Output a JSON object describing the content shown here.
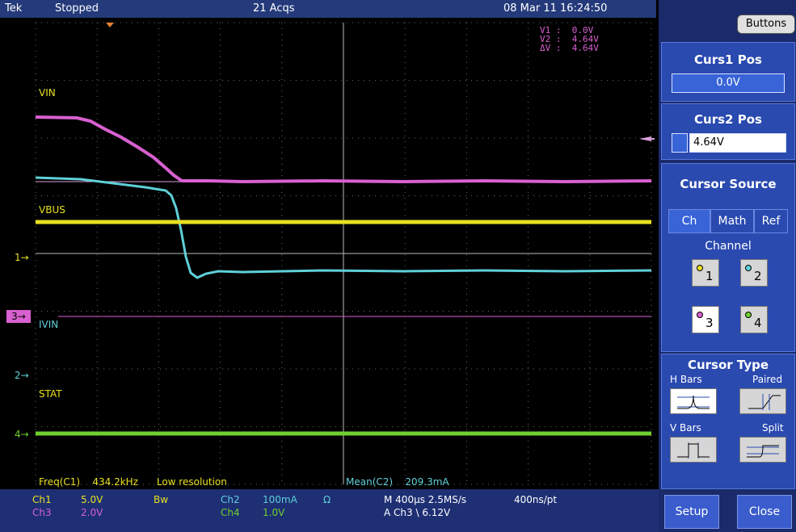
{
  "top": {
    "brand": "Tek",
    "status": "Stopped",
    "acqs": "21 Acqs",
    "datetime": "08 Mar 11 16:24:50"
  },
  "cursor_readout": {
    "v1_label": "V1 :",
    "v1": "0.0V",
    "v2_label": "V2 :",
    "v2": "4.64V",
    "dv_label": "ΔV :",
    "dv": "4.64V"
  },
  "traces": {
    "vin": "VIN",
    "vbus": "VBUS",
    "ivin": "IVIN",
    "stat": "STAT"
  },
  "markers": {
    "m1": "1",
    "m2": "2",
    "m3": "3",
    "m4": "4"
  },
  "measure": {
    "freq_label": "Freq(C1)",
    "freq_value": "434.2kHz",
    "freq_note": "Low resolution",
    "mean_label": "Mean(C2)",
    "mean_value": "209.3mA"
  },
  "bottom": {
    "ch1": "Ch1",
    "ch1v": "5.0V",
    "bw": "Bw",
    "ch2": "Ch2",
    "ch2v": "100mA",
    "ohm": "Ω",
    "ch3": "Ch3",
    "ch3v": "2.0V",
    "ch4": "Ch4",
    "ch4v": "1.0V",
    "timebase": "M 400µs 2.5MS/s",
    "rate": "400ns/pt",
    "trig": "A  Ch3  \\  6.12V"
  },
  "side": {
    "buttons": "Buttons",
    "curs1_title": "Curs1 Pos",
    "curs1_value": "0.0V",
    "curs2_title": "Curs2 Pos",
    "curs2_value": "4.64V",
    "source_title": "Cursor Source",
    "tabs": [
      "Ch",
      "Math",
      "Ref"
    ],
    "channel_label": "Channel",
    "channels": [
      "1",
      "2",
      "3",
      "4"
    ],
    "type_title": "Cursor Type",
    "hbars": "H Bars",
    "paired": "Paired",
    "vbars": "V Bars",
    "split": "Split",
    "setup": "Setup",
    "close": "Close"
  },
  "colors": {
    "ch1": "#e8e020",
    "ch2": "#5fd0d8",
    "ch3": "#d860d0",
    "ch4": "#70d030"
  }
}
